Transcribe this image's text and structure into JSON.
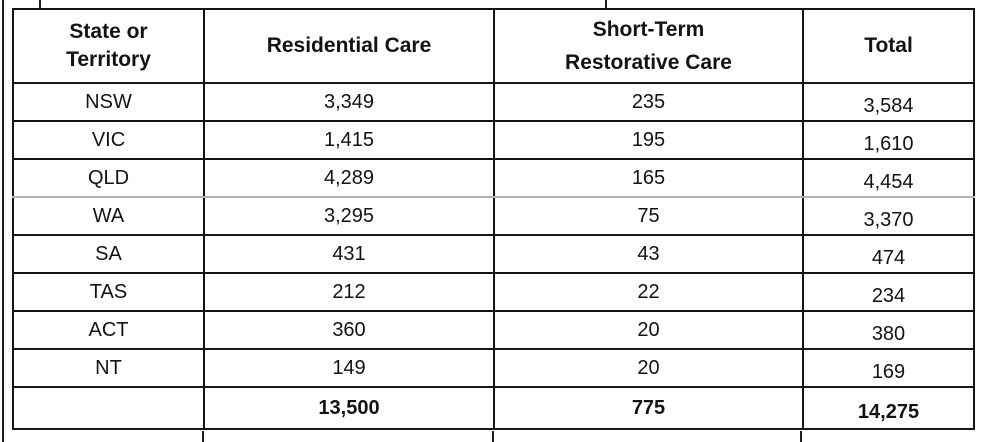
{
  "chart_data": {
    "type": "table",
    "columns": [
      "State or Territory",
      "Residential Care",
      "Short-Term Restorative Care",
      "Total"
    ],
    "rows": [
      [
        "NSW",
        "3,349",
        "235",
        "3,584"
      ],
      [
        "VIC",
        "1,415",
        "195",
        "1,610"
      ],
      [
        "QLD",
        "4,289",
        "165",
        "4,454"
      ],
      [
        "WA",
        "3,295",
        "75",
        "3,370"
      ],
      [
        "SA",
        "431",
        "43",
        "474"
      ],
      [
        "TAS",
        "212",
        "22",
        "234"
      ],
      [
        "ACT",
        "360",
        "20",
        "380"
      ],
      [
        "NT",
        "149",
        "20",
        "169"
      ]
    ],
    "totals_row": [
      "",
      "13,500",
      "775",
      "14,275"
    ]
  },
  "header_lines": {
    "state_territory": [
      "State or",
      "Territory"
    ],
    "residential": [
      "Residential Care"
    ],
    "short_term": [
      "Short-Term",
      "Restorative Care"
    ],
    "total": [
      "Total"
    ]
  },
  "colors": {
    "border": "#161616",
    "faint_line": "#b3b3b3",
    "text": "#131313",
    "background": "#ffffff"
  }
}
